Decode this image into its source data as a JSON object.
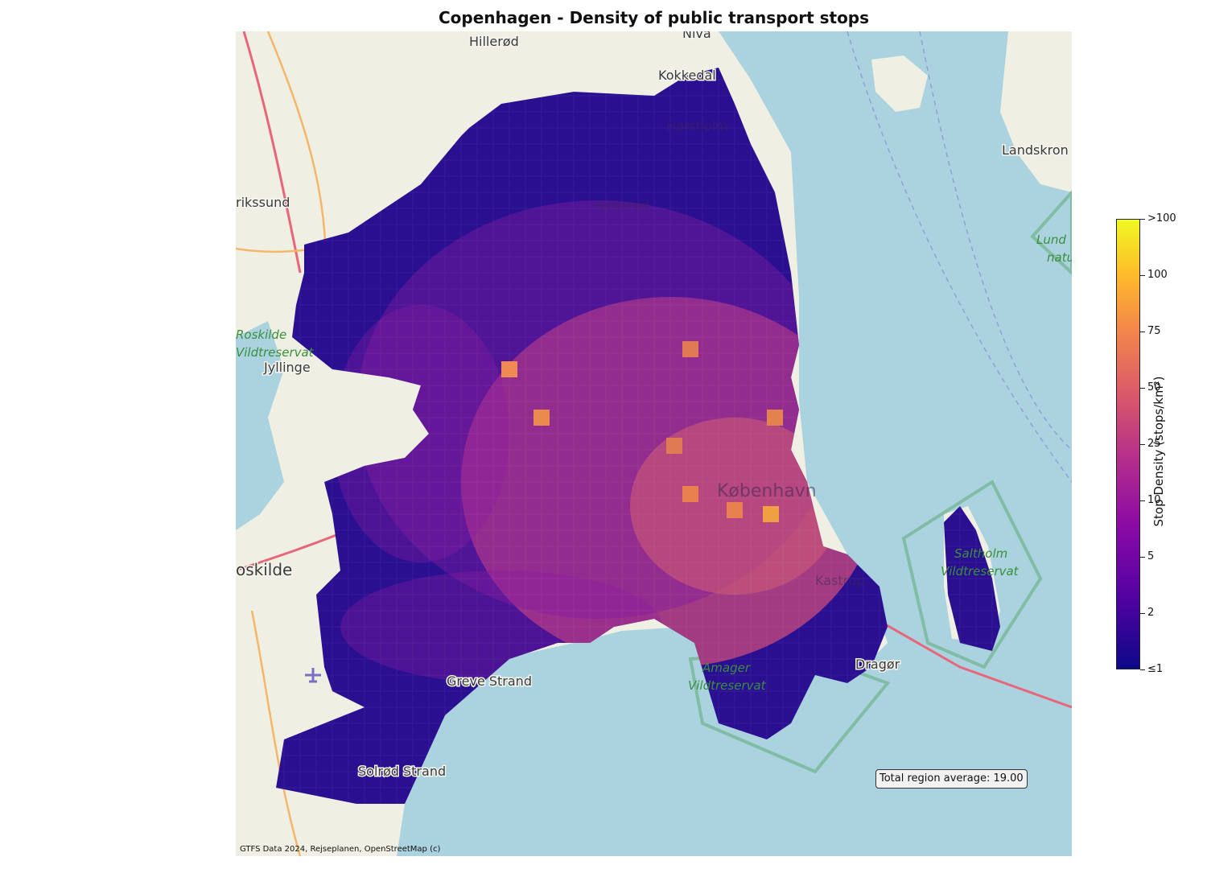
{
  "title": "Copenhagen - Density of public transport stops",
  "average_label": "Total region average: 19.00",
  "attribution": "GTFS Data 2024, Rejseplanen, OpenStreetMap (c)",
  "colorbar": {
    "label": "Stop Density (stops/km²)",
    "ticks": [
      ">100",
      "100",
      "75",
      "50",
      "25",
      "10",
      "5",
      "2",
      "≤1"
    ]
  },
  "places": {
    "hillerod": "Hillerød",
    "niva": "Nivå",
    "kokkedal": "Kokkedal",
    "landskrona": "Landskron",
    "frederikssund": "rikssund",
    "roskilde_fjord": "Roskilde",
    "vildtreservat": "Vildtreservat",
    "jyllinge": "Jyllinge",
    "roskilde": "oskilde",
    "lund": "Lund",
    "natur": "natu",
    "horsholm": "Hørsholm",
    "birkerod": "Birkerød",
    "copenhagen": "København",
    "kastrup": "Kastrup",
    "dragor": "Dragør",
    "greve": "Greve Strand",
    "solrod": "Solrød Strand",
    "saltholm": "Saltholm",
    "saltholm_sub": "Vildtreservat",
    "amager": "Amager",
    "amager_sub": "Vildtreservat"
  },
  "colors": {
    "sea": "#aad3df",
    "land": "#f0efe4",
    "low_density": "#0d0887",
    "high_density": "#f0f921"
  }
}
